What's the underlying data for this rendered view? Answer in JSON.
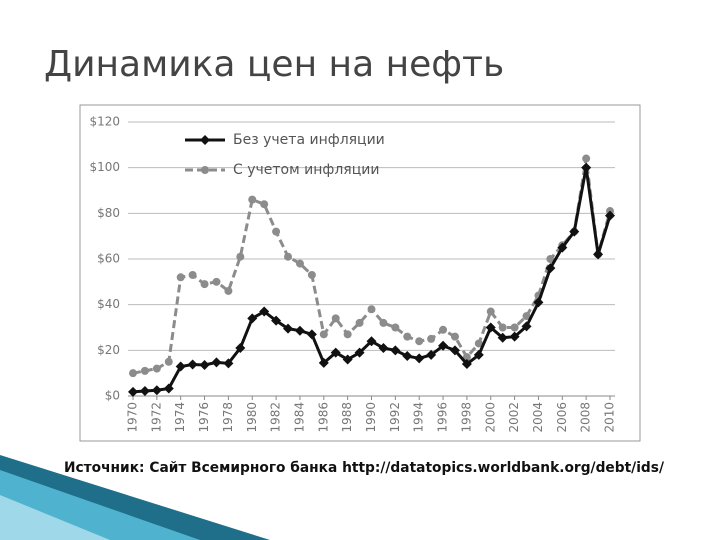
{
  "chart_data": {
    "type": "line",
    "title": "Динамика цен на нефть",
    "x": [
      1970,
      1971,
      1972,
      1973,
      1974,
      1975,
      1976,
      1977,
      1978,
      1979,
      1980,
      1981,
      1982,
      1983,
      1984,
      1985,
      1986,
      1987,
      1988,
      1989,
      1990,
      1991,
      1992,
      1993,
      1994,
      1995,
      1996,
      1997,
      1998,
      1999,
      2000,
      2001,
      2002,
      2003,
      2004,
      2005,
      2006,
      2007,
      2008,
      2009,
      2010
    ],
    "series": [
      {
        "name": "Без учета инфляции",
        "color": "#111111",
        "line_style": "solid",
        "marker": "diamond",
        "values": [
          1.8,
          2.2,
          2.5,
          3.3,
          12.9,
          13.8,
          13.6,
          14.7,
          14.3,
          21,
          34,
          37,
          33,
          29.5,
          28.6,
          27,
          14.5,
          19,
          16,
          19,
          24,
          21,
          20,
          17.5,
          16.5,
          18,
          22,
          20,
          14,
          18,
          30,
          25.5,
          26,
          30.5,
          41,
          56,
          65,
          72,
          100,
          62,
          79
        ]
      },
      {
        "name": "С учетом инфляции",
        "color": "#8c8c8c",
        "line_style": "dashed",
        "marker": "circle",
        "values": [
          10,
          11,
          12,
          15,
          52,
          53,
          49,
          50,
          46,
          61,
          86,
          84,
          72,
          61,
          58,
          53,
          27,
          34,
          27,
          32,
          38,
          32,
          30,
          26,
          24,
          25,
          29,
          26,
          17,
          23,
          37,
          30,
          30,
          35,
          44,
          60,
          66,
          72,
          104,
          62,
          81
        ]
      }
    ],
    "xlim": [
      1970,
      2010
    ],
    "xticks": [
      1970,
      1972,
      1974,
      1976,
      1978,
      1980,
      1982,
      1984,
      1986,
      1988,
      1990,
      1992,
      1994,
      1996,
      1998,
      2000,
      2002,
      2004,
      2006,
      2008,
      2010
    ],
    "ylim": [
      0,
      120
    ],
    "yticks": [
      {
        "value": 0,
        "label": "$0"
      },
      {
        "value": 20,
        "label": "$20"
      },
      {
        "value": 40,
        "label": "$40"
      },
      {
        "value": 60,
        "label": "$60"
      },
      {
        "value": 80,
        "label": "$80"
      },
      {
        "value": 100,
        "label": "$100"
      },
      {
        "value": 120,
        "label": "$120"
      }
    ],
    "grid": true,
    "legend": "top-left"
  },
  "source": "Источник: Сайт Всемирного банка http://datatopics.worldbank.org/debt/ids/"
}
